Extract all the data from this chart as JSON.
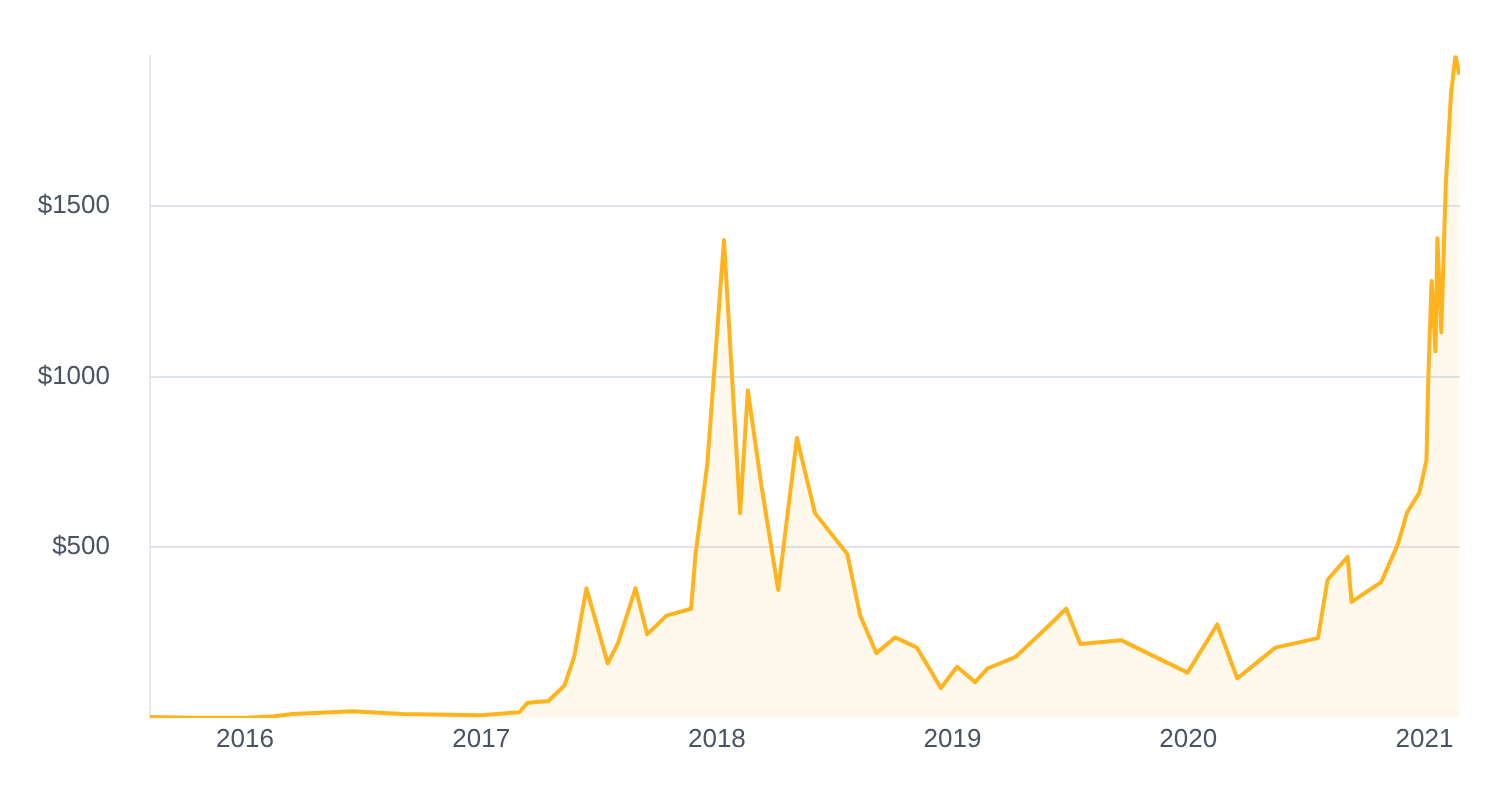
{
  "chart_data": {
    "type": "area",
    "x": [
      "2015-08-07",
      "2015-10-15",
      "2016-01-01",
      "2016-02-15",
      "2016-03-15",
      "2016-06-15",
      "2016-09-01",
      "2016-12-31",
      "2017-03-01",
      "2017-03-14",
      "2017-04-15",
      "2017-05-10",
      "2017-05-25",
      "2017-06-13",
      "2017-07-16",
      "2017-08-01",
      "2017-08-28",
      "2017-09-15",
      "2017-10-15",
      "2017-11-22",
      "2017-11-29",
      "2017-12-17",
      "2018-01-12",
      "2018-02-06",
      "2018-02-18",
      "2018-03-11",
      "2018-04-06",
      "2018-05-05",
      "2018-06-02",
      "2018-07-22",
      "2018-08-11",
      "2018-09-05",
      "2018-10-04",
      "2018-11-07",
      "2018-12-14",
      "2019-01-08",
      "2019-02-05",
      "2019-02-24",
      "2019-04-08",
      "2019-05-26",
      "2019-06-26",
      "2019-07-18",
      "2019-09-19",
      "2019-10-30",
      "2019-12-31",
      "2020-02-15",
      "2020-03-17",
      "2020-05-15",
      "2020-07-20",
      "2020-08-04",
      "2020-09-04",
      "2020-09-10",
      "2020-10-26",
      "2020-11-21",
      "2020-12-05",
      "2020-12-24",
      "2021-01-04",
      "2021-01-07",
      "2021-01-12",
      "2021-01-18",
      "2021-01-21",
      "2021-01-27",
      "2021-02-03",
      "2021-02-11",
      "2021-02-18",
      "2021-02-24"
    ],
    "values": [
      3,
      1,
      1,
      5,
      12,
      20,
      12,
      8,
      17,
      45,
      50,
      95,
      180,
      380,
      160,
      220,
      380,
      245,
      300,
      320,
      480,
      740,
      1400,
      600,
      960,
      680,
      375,
      820,
      600,
      480,
      300,
      190,
      236,
      206,
      88,
      150,
      105,
      145,
      178,
      263,
      320,
      217,
      228,
      190,
      133,
      274,
      116,
      206,
      234,
      405,
      472,
      340,
      398,
      510,
      602,
      660,
      754,
      1000,
      1280,
      1074,
      1405,
      1130,
      1563,
      1827,
      1940,
      1884
    ],
    "color": "#ffb41e",
    "xlim": [
      "2015-08-07",
      "2021-02-25"
    ],
    "xticks": [
      {
        "value": "2016-01-01",
        "label": "2016"
      },
      {
        "value": "2017-01-01",
        "label": "2017"
      },
      {
        "value": "2018-01-01",
        "label": "2018"
      },
      {
        "value": "2019-01-01",
        "label": "2019"
      },
      {
        "value": "2020-01-01",
        "label": "2020"
      },
      {
        "value": "2021-01-01",
        "label": "2021"
      }
    ],
    "ylim": [
      0,
      1940
    ],
    "yticks": [
      {
        "value": 500,
        "label": "$500"
      },
      {
        "value": 1000,
        "label": "$1000"
      },
      {
        "value": 1500,
        "label": "$1500"
      }
    ],
    "grid": "y",
    "legend": false
  }
}
